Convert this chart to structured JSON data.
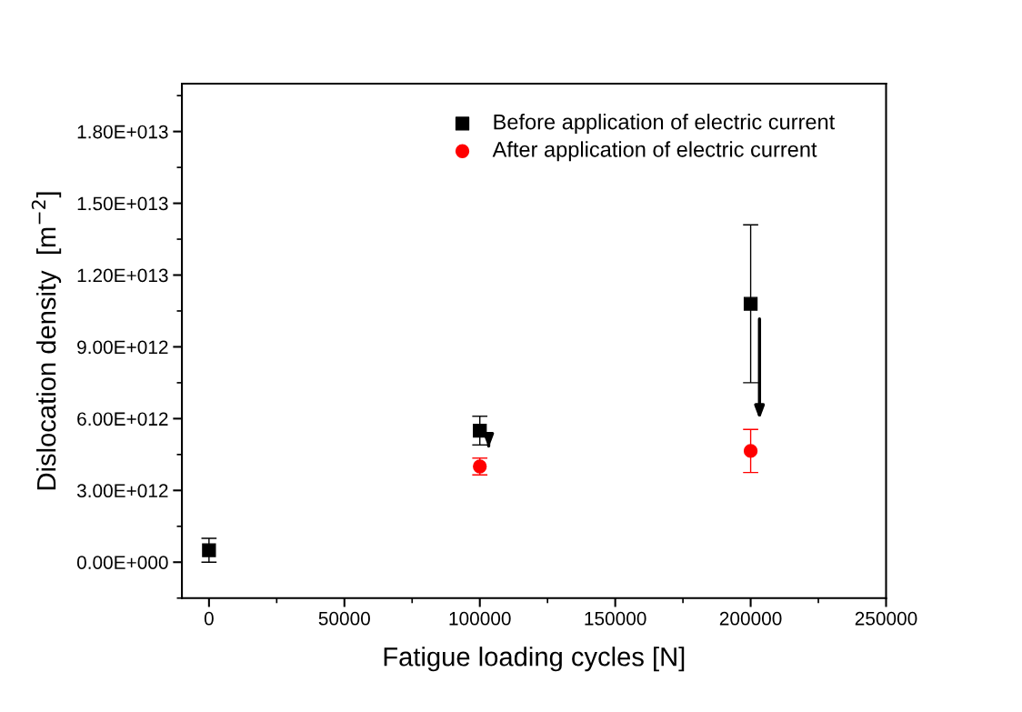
{
  "chart_data": {
    "type": "scatter",
    "xlabel": "Fatigue loading cycles [N]",
    "ylabel": "Dislocation density  [m$^{−2}$]",
    "series": [
      {
        "name": "Before application of electric current",
        "color": "#000000",
        "marker": "square",
        "x": [
          0,
          100000,
          200000
        ],
        "values": [
          500000000000.0,
          5500000000000.0,
          10800000000000.0
        ],
        "errors": [
          500000000000.0,
          600000000000.0,
          3300000000000.0
        ]
      },
      {
        "name": "After application of electric current",
        "color": "#ff0000",
        "marker": "circle",
        "x": [
          100000,
          200000
        ],
        "values": [
          4000000000000.0,
          4650000000000.0
        ],
        "errors": [
          350000000000.0,
          900000000000.0
        ]
      }
    ],
    "xlim": [
      -10000,
      250000
    ],
    "xticks": [
      0,
      50000,
      100000,
      150000,
      200000,
      250000
    ],
    "ylim": [
      -1500000000000.0,
      20000000000000.0
    ],
    "yticks": [
      {
        "value": 0,
        "label": "0.00E+000"
      },
      {
        "value": 3000000000000.0,
        "label": "3.00E+012"
      },
      {
        "value": 6000000000000.0,
        "label": "6.00E+012"
      },
      {
        "value": 9000000000000.0,
        "label": "9.00E+012"
      },
      {
        "value": 12000000000000.0,
        "label": "1.20E+013"
      },
      {
        "value": 15000000000000.0,
        "label": "1.50E+013"
      },
      {
        "value": 18000000000000.0,
        "label": "1.80E+013"
      }
    ],
    "grid": false,
    "legend": "top right"
  }
}
